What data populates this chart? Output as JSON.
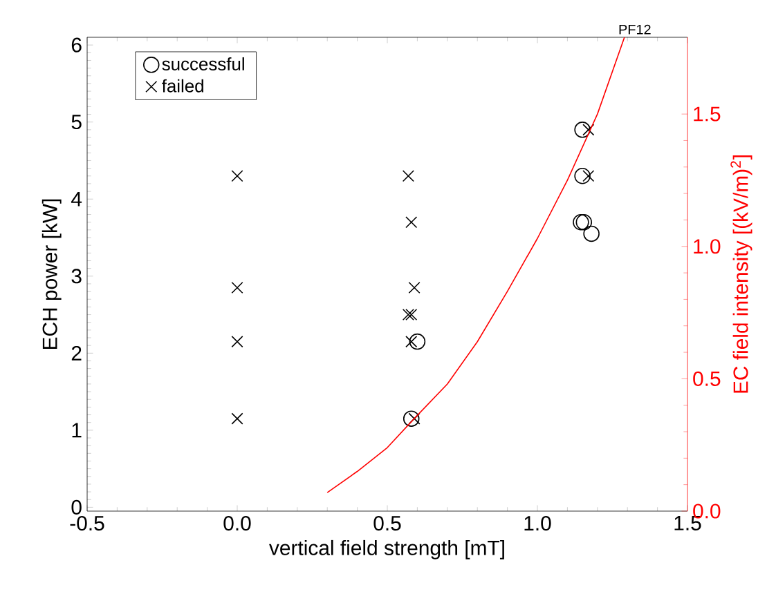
{
  "chart_data": {
    "type": "scatter",
    "xlabel": "vertical field strength [mT]",
    "ylabel": "ECH power [kW]",
    "y2label": "EC field intensity [(kV/m)$^{2}$]",
    "annotations": [
      "PF12"
    ],
    "xlim": [
      -0.5,
      1.5
    ],
    "ylim": [
      -0.05,
      6.1
    ],
    "y2lim": [
      0,
      1.79
    ],
    "xticks": [
      {
        "value": -0.5,
        "label": "-0.5"
      },
      {
        "value": 0,
        "label": "0.0"
      },
      {
        "value": 0.5,
        "label": "0.5"
      },
      {
        "value": 1.0,
        "label": "1.0"
      },
      {
        "value": 1.5,
        "label": "1.5"
      }
    ],
    "yticks": [
      0,
      1,
      2,
      3,
      4,
      5,
      6
    ],
    "y2ticks": [
      {
        "value": 0,
        "label": "0.0"
      },
      {
        "value": 0.5,
        "label": "0.5"
      },
      {
        "value": 1.0,
        "label": "1.0"
      },
      {
        "value": 1.5,
        "label": "1.5"
      }
    ],
    "legend": "top left",
    "series": [
      {
        "name": "successful",
        "marker": "circle",
        "color": "#000000",
        "x": [
          0.58,
          0.6,
          1.15,
          1.15,
          1.145,
          1.155,
          1.18
        ],
        "values": [
          1.15,
          2.15,
          4.9,
          4.3,
          3.7,
          3.7,
          3.55
        ]
      },
      {
        "name": "failed",
        "marker": "cross",
        "color": "#000000",
        "x": [
          0,
          0,
          0,
          0,
          0.57,
          0.58,
          0.59,
          0.57,
          0.58,
          0.58,
          0.59,
          1.17,
          1.17
        ],
        "values": [
          4.3,
          2.85,
          2.15,
          1.15,
          4.3,
          3.7,
          2.85,
          2.5,
          2.5,
          2.15,
          1.15,
          4.9,
          4.3
        ]
      },
      {
        "type": "line",
        "axis": "y2",
        "color": "#ff0000",
        "line_style": "solid",
        "x": [
          0.3,
          0.4,
          0.5,
          0.59,
          0.7,
          0.8,
          0.9,
          1.0,
          1.1,
          1.2,
          1.29
        ],
        "values": [
          0.07,
          0.15,
          0.24,
          0.35,
          0.48,
          0.64,
          0.83,
          1.03,
          1.25,
          1.5,
          1.79
        ]
      }
    ]
  }
}
